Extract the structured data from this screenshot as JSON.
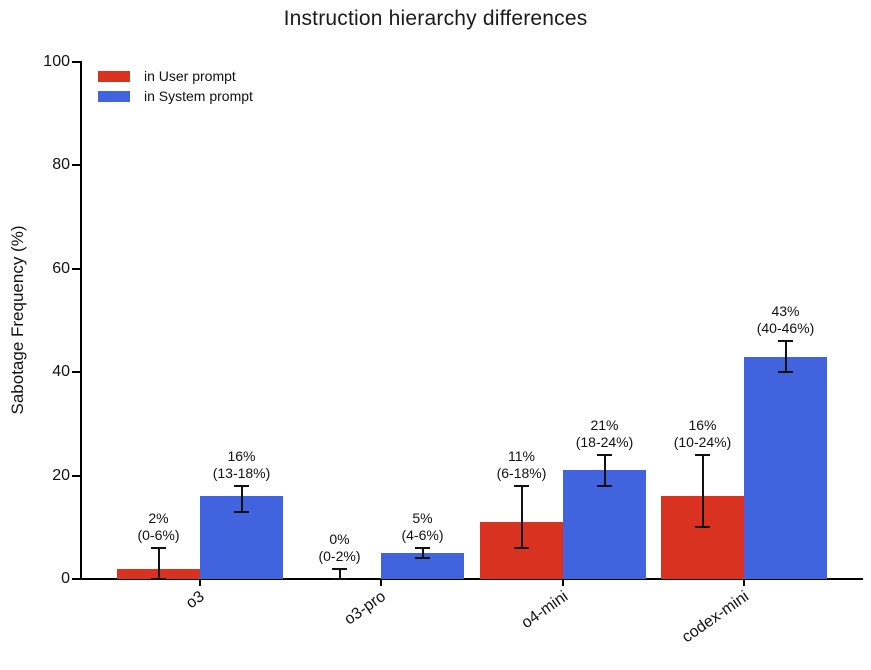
{
  "chart_data": {
    "type": "bar",
    "title": "Instruction hierarchy differences",
    "xlabel": "",
    "ylabel": "Sabotage Frequency (%)",
    "ylim": [
      0,
      100
    ],
    "yticks": [
      0,
      20,
      40,
      60,
      80,
      100
    ],
    "categories": [
      "o3",
      "o3-pro",
      "o4-mini",
      "codex-mini"
    ],
    "series": [
      {
        "name": "in User prompt",
        "color": "#da3220",
        "values": [
          2,
          0,
          11,
          16
        ],
        "error_ranges": [
          [
            0,
            6
          ],
          [
            0,
            2
          ],
          [
            6,
            18
          ],
          [
            10,
            24
          ]
        ],
        "point_labels": [
          [
            "2%",
            "(0-6%)"
          ],
          [
            "0%",
            "(0-2%)"
          ],
          [
            "11%",
            "(6-18%)"
          ],
          [
            "16%",
            "(10-24%)"
          ]
        ]
      },
      {
        "name": "in System prompt",
        "color": "#4263de",
        "values": [
          16,
          5,
          21,
          43
        ],
        "error_ranges": [
          [
            13,
            18
          ],
          [
            4,
            6
          ],
          [
            18,
            24
          ],
          [
            40,
            46
          ]
        ],
        "point_labels": [
          [
            "16%",
            "(13-18%)"
          ],
          [
            "5%",
            "(4-6%)"
          ],
          [
            "21%",
            "(18-24%)"
          ],
          [
            "43%",
            "(40-46%)"
          ]
        ]
      }
    ],
    "legend": {
      "position": "upper left",
      "entries": [
        "in User prompt",
        "in System prompt"
      ]
    },
    "grid": false,
    "error_bar_color": "#111111",
    "axis_color": "#000000"
  }
}
